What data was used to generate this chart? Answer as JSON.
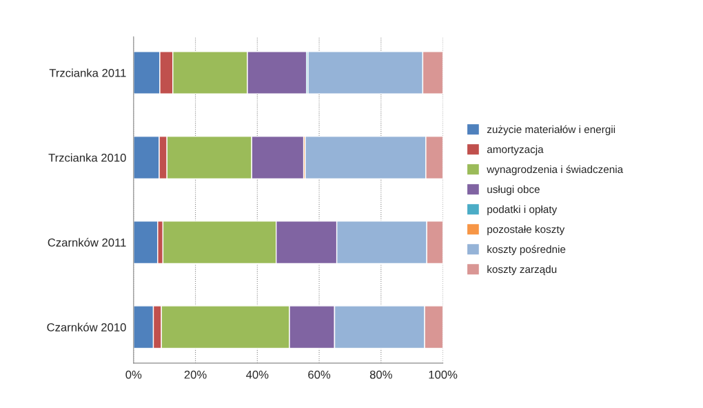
{
  "chart_data": {
    "type": "bar",
    "orientation": "horizontal",
    "stacked": true,
    "categories": [
      "Trzcianka 2011",
      "Trzcianka 2010",
      "Czarnków 2011",
      "Czarnków 2010"
    ],
    "series": [
      {
        "name": "zużycie materiałów i energii",
        "color": "#4f81bd",
        "values": [
          8.5,
          8.3,
          7.8,
          6.4
        ]
      },
      {
        "name": "amortyzacja",
        "color": "#c0504d",
        "values": [
          4.2,
          2.5,
          1.7,
          2.6
        ]
      },
      {
        "name": "wynagrodzenia i świadczenia",
        "color": "#9bbb59",
        "values": [
          24.1,
          27.4,
          36.6,
          41.4
        ]
      },
      {
        "name": "usługi obce",
        "color": "#8064a2",
        "values": [
          19.1,
          16.8,
          19.6,
          14.6
        ]
      },
      {
        "name": "podatki i opłaty",
        "color": "#4bacc6",
        "values": [
          0.5,
          0,
          0,
          0
        ]
      },
      {
        "name": "pozostałe koszty",
        "color": "#f79646",
        "values": [
          0,
          0.5,
          0,
          0
        ]
      },
      {
        "name": "koszty pośrednie",
        "color": "#95b3d7",
        "values": [
          37.1,
          39.0,
          29.1,
          29.1
        ]
      },
      {
        "name": "koszty zarządu",
        "color": "#d99694",
        "values": [
          6.5,
          5.5,
          5.2,
          5.9
        ]
      }
    ],
    "xlim": [
      0,
      100
    ],
    "xticks": [
      {
        "value": 0,
        "label": "0%"
      },
      {
        "value": 20,
        "label": "20%"
      },
      {
        "value": 40,
        "label": "40%"
      },
      {
        "value": 60,
        "label": "60%"
      },
      {
        "value": 80,
        "label": "80%"
      },
      {
        "value": 100,
        "label": "100%"
      }
    ],
    "grid": "x",
    "legend": "right"
  }
}
